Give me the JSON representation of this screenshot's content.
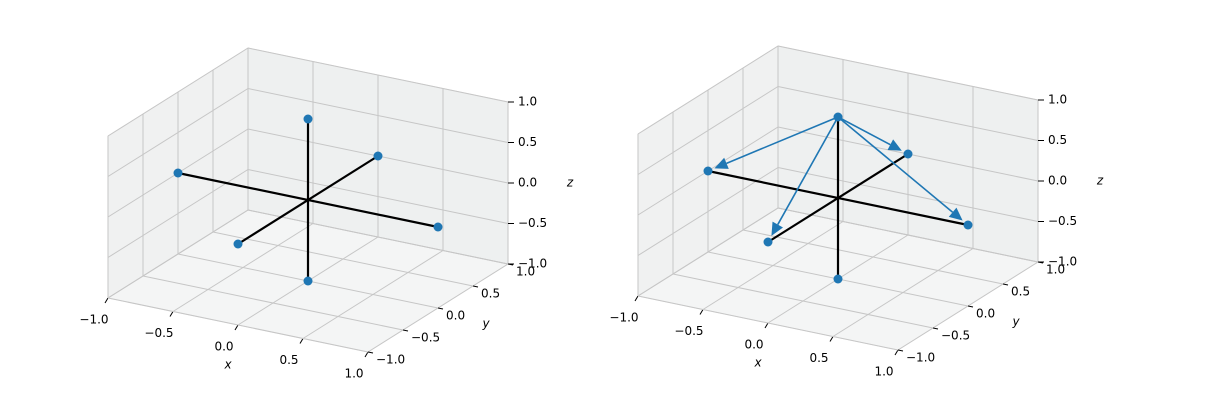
{
  "chart_data": [
    {
      "type": "scatter3d",
      "xlabel": "x",
      "ylabel": "y",
      "zlabel": "z",
      "color": "#1f77b4",
      "line_color": "#000000",
      "x": [
        -1,
        1,
        0,
        0,
        0,
        0
      ],
      "y": [
        0,
        0,
        -1,
        1,
        0,
        0
      ],
      "z": [
        0,
        0,
        0,
        0,
        -1,
        1
      ],
      "xlim": [
        -1,
        1
      ],
      "ylim": [
        -1,
        1
      ],
      "zlim": [
        -1,
        1
      ],
      "xticks": [
        {
          "value": -1,
          "label": "−1.0"
        },
        {
          "value": -0.5,
          "label": "−0.5"
        },
        {
          "value": 0,
          "label": "0.0"
        },
        {
          "value": 0.5,
          "label": "0.5"
        },
        {
          "value": 1,
          "label": "1.0"
        }
      ],
      "yticks": [
        {
          "value": -1,
          "label": "−1.0"
        },
        {
          "value": -0.5,
          "label": "−0.5"
        },
        {
          "value": 0,
          "label": "0.0"
        },
        {
          "value": 0.5,
          "label": "0.5"
        },
        {
          "value": 1,
          "label": "1.0"
        }
      ],
      "zticks": [
        {
          "value": -1,
          "label": "−1.0"
        },
        {
          "value": -0.5,
          "label": "−0.5"
        },
        {
          "value": 0,
          "label": "0.0"
        },
        {
          "value": 0.5,
          "label": "0.5"
        },
        {
          "value": 1,
          "label": "1.0"
        }
      ],
      "grid": true
    },
    {
      "type": "scatter3d",
      "xlabel": "x",
      "ylabel": "y",
      "zlabel": "z",
      "color": "#1f77b4",
      "line_color": "#000000",
      "x": [
        -1,
        1,
        0,
        0,
        0,
        0
      ],
      "y": [
        0,
        0,
        -1,
        1,
        0,
        0
      ],
      "z": [
        0,
        0,
        0,
        0,
        -1,
        1
      ],
      "arrows": [
        {
          "start": [
            0,
            0,
            1
          ],
          "end": [
            -1,
            0,
            0
          ]
        },
        {
          "start": [
            0,
            0,
            1
          ],
          "end": [
            1,
            0,
            0
          ]
        },
        {
          "start": [
            0,
            0,
            1
          ],
          "end": [
            0,
            -1,
            0
          ]
        },
        {
          "start": [
            0,
            0,
            1
          ],
          "end": [
            0,
            1,
            0
          ]
        }
      ],
      "xlim": [
        -1,
        1
      ],
      "ylim": [
        -1,
        1
      ],
      "zlim": [
        -1,
        1
      ],
      "xticks": [
        {
          "value": -1,
          "label": "−1.0"
        },
        {
          "value": -0.5,
          "label": "−0.5"
        },
        {
          "value": 0,
          "label": "0.0"
        },
        {
          "value": 0.5,
          "label": "0.5"
        },
        {
          "value": 1,
          "label": "1.0"
        }
      ],
      "yticks": [
        {
          "value": -1,
          "label": "−1.0"
        },
        {
          "value": -0.5,
          "label": "−0.5"
        },
        {
          "value": 0,
          "label": "0.0"
        },
        {
          "value": 0.5,
          "label": "0.5"
        },
        {
          "value": 1,
          "label": "1.0"
        }
      ],
      "zticks": [
        {
          "value": -1,
          "label": "−1.0"
        },
        {
          "value": -0.5,
          "label": "−0.5"
        },
        {
          "value": 0,
          "label": "0.0"
        },
        {
          "value": 0.5,
          "label": "0.5"
        },
        {
          "value": 1,
          "label": "1.0"
        }
      ],
      "grid": true
    }
  ]
}
